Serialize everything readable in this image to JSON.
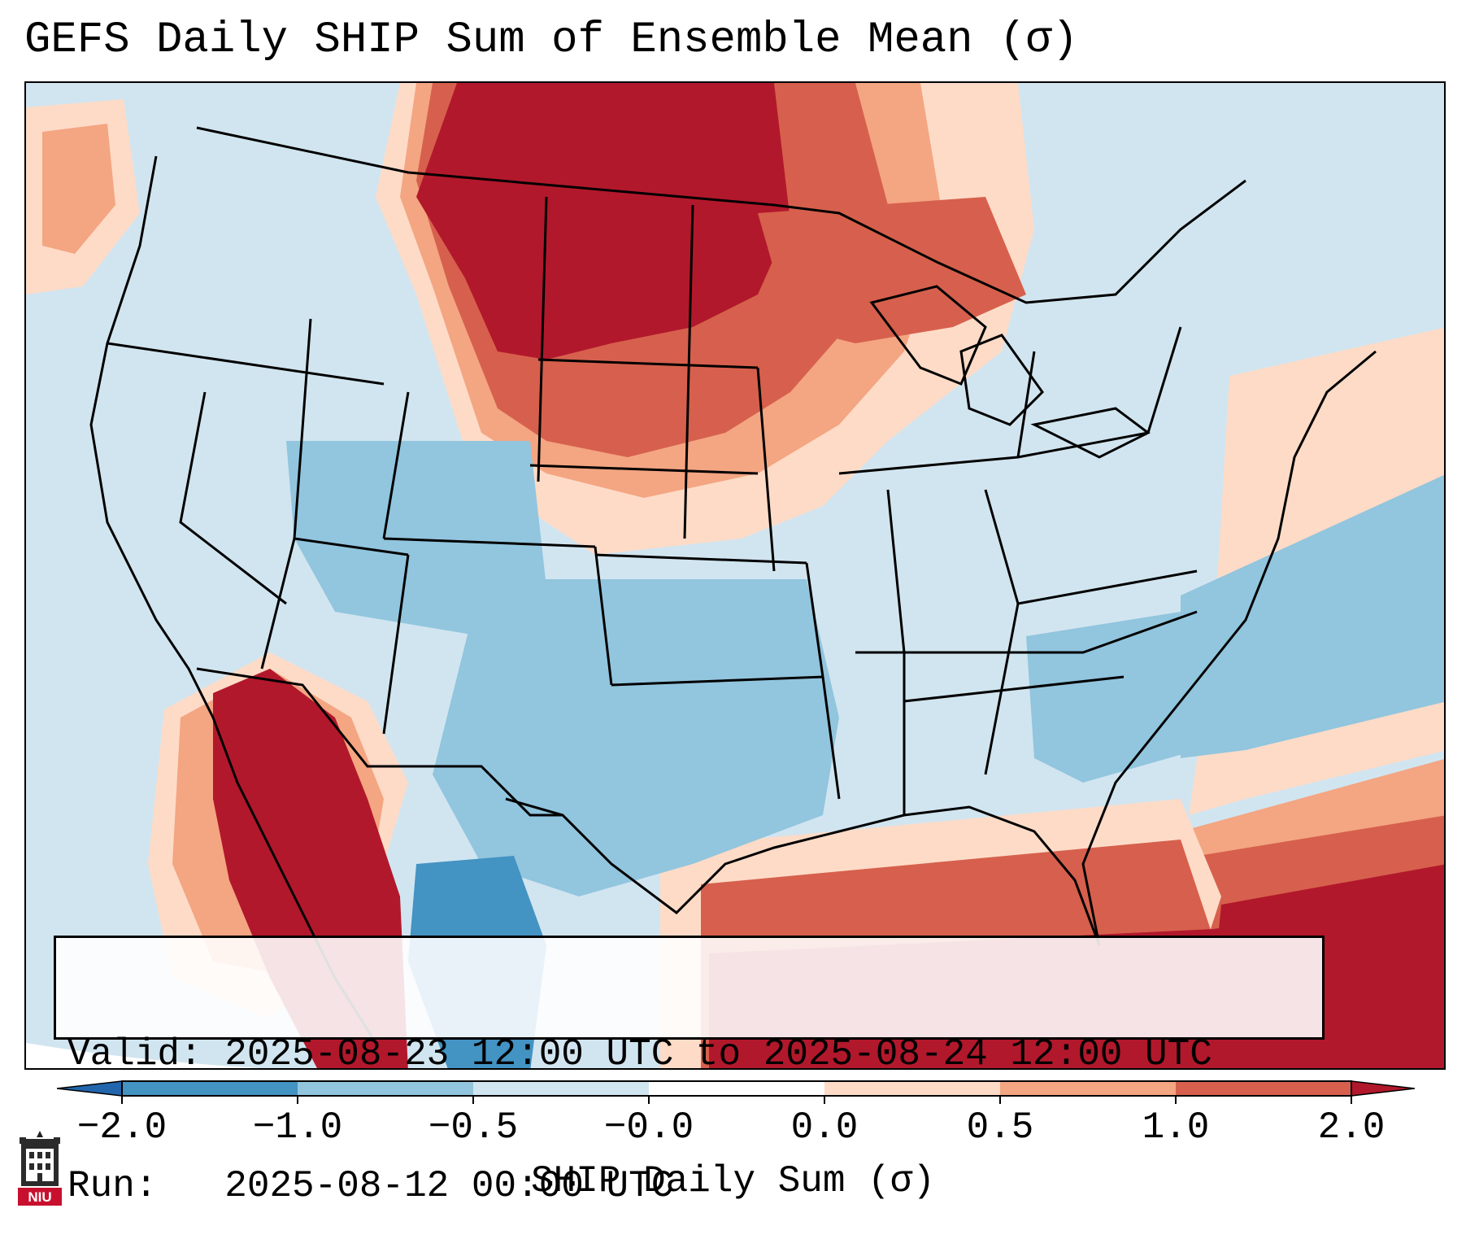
{
  "title": "GEFS Daily SHIP Sum of Ensemble Mean (σ)",
  "info": {
    "valid": "Valid: 2025-08-23 12:00 UTC to 2025-08-24 12:00 UTC",
    "run": "Run:   2025-08-12 00:00 UTC"
  },
  "colorbar": {
    "label": "SHIP Daily Sum (σ)",
    "ticks": [
      "−2.0",
      "−1.0",
      "−0.5",
      "−0.0",
      "0.0",
      "0.5",
      "1.0",
      "2.0"
    ],
    "bins": [
      {
        "range": "< -2.0",
        "color": "#2166ac"
      },
      {
        "range": "-2.0 to -1.0",
        "color": "#4393c3"
      },
      {
        "range": "-1.0 to -0.5",
        "color": "#92c5de"
      },
      {
        "range": "-0.5 to -0.0",
        "color": "#d1e5f0"
      },
      {
        "range": "-0.0 to 0.0",
        "color": "#ffffff"
      },
      {
        "range": "0.0 to 0.5",
        "color": "#fddbc7"
      },
      {
        "range": "0.5 to 1.0",
        "color": "#f4a582"
      },
      {
        "range": "1.0 to 2.0",
        "color": "#d6604d"
      },
      {
        "range": "> 2.0",
        "color": "#b2182b"
      }
    ]
  },
  "logo": {
    "text": "NIU",
    "icon": "niu-castle-icon"
  }
}
